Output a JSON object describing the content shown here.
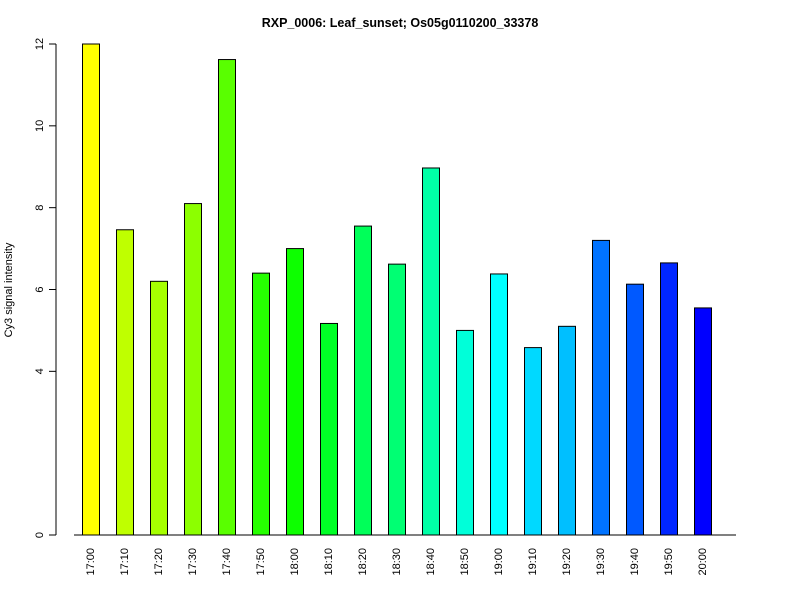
{
  "chart_data": {
    "type": "bar",
    "title": "RXP_0006: Leaf_sunset; Os05g0110200_33378",
    "xlabel": "",
    "ylabel": "Cy3 signal intensity",
    "categories": [
      "17:00",
      "17:10",
      "17:20",
      "17:30",
      "17:40",
      "17:50",
      "18:00",
      "18:10",
      "18:20",
      "18:30",
      "18:40",
      "18:50",
      "19:00",
      "19:10",
      "19:20",
      "19:30",
      "19:40",
      "19:50",
      "20:00"
    ],
    "values": [
      12.0,
      7.46,
      6.2,
      8.1,
      11.62,
      6.4,
      7.0,
      5.17,
      7.55,
      6.62,
      8.97,
      5.0,
      6.38,
      4.58,
      5.1,
      7.2,
      6.13,
      6.65,
      5.55
    ],
    "colors": [
      "#ffff00",
      "#bfff00",
      "#a6ff00",
      "#8cff00",
      "#59ff00",
      "#26ff00",
      "#0dff00",
      "#00ff26",
      "#00ff59",
      "#00ff73",
      "#00ffa6",
      "#00ffd9",
      "#00ffff",
      "#00d9ff",
      "#00bfff",
      "#0073ff",
      "#0059ff",
      "#0026ff",
      "#0000ff"
    ],
    "yticks": [
      0,
      4,
      6,
      8,
      10,
      12
    ],
    "ylim": [
      0,
      12
    ],
    "grid": false
  }
}
